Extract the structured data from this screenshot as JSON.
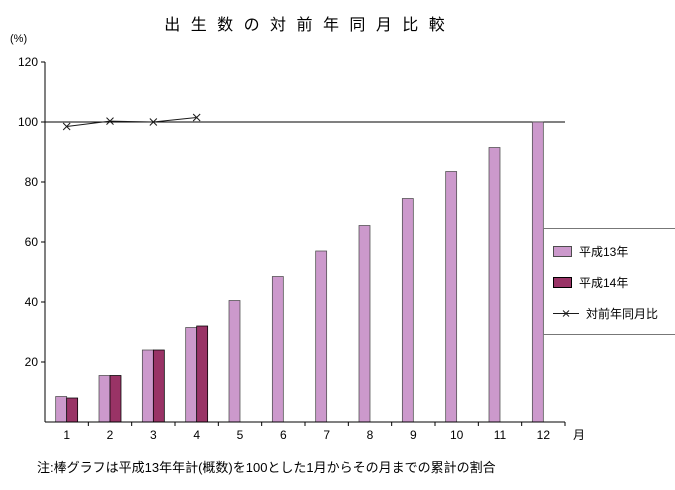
{
  "chart_data": {
    "type": "bar+line",
    "title": "出 生 数 の 対 前 年 同 月 比 較",
    "y_unit": "(%)",
    "x_unit": "月",
    "note": "注:棒グラフは平成13年年計(概数)を100とした1月からその月までの累計の割合",
    "categories": [
      "1",
      "2",
      "3",
      "4",
      "5",
      "6",
      "7",
      "8",
      "9",
      "10",
      "11",
      "12"
    ],
    "ylim": [
      0,
      120
    ],
    "yticks": [
      20,
      40,
      60,
      80,
      100,
      120
    ],
    "reference_line": 100,
    "legend_position": "right",
    "grid": "reference-line-only",
    "series": [
      {
        "name": "平成13年",
        "type": "bar",
        "color": "#cc99cc",
        "border": "#4d4d4d",
        "values": [
          8.5,
          15.5,
          24,
          31.5,
          40.5,
          48.5,
          57,
          65.5,
          74.5,
          83.5,
          91.5,
          100
        ]
      },
      {
        "name": "平成14年",
        "type": "bar",
        "color": "#993366",
        "border": "#000000",
        "values": [
          8,
          15.5,
          24,
          32,
          null,
          null,
          null,
          null,
          null,
          null,
          null,
          null
        ]
      },
      {
        "name": "対前年同月比",
        "type": "line",
        "color": "#1a1a1a",
        "marker": "x",
        "values": [
          98.5,
          100.3,
          100,
          101.5,
          null,
          null,
          null,
          null,
          null,
          null,
          null,
          null
        ]
      }
    ]
  }
}
